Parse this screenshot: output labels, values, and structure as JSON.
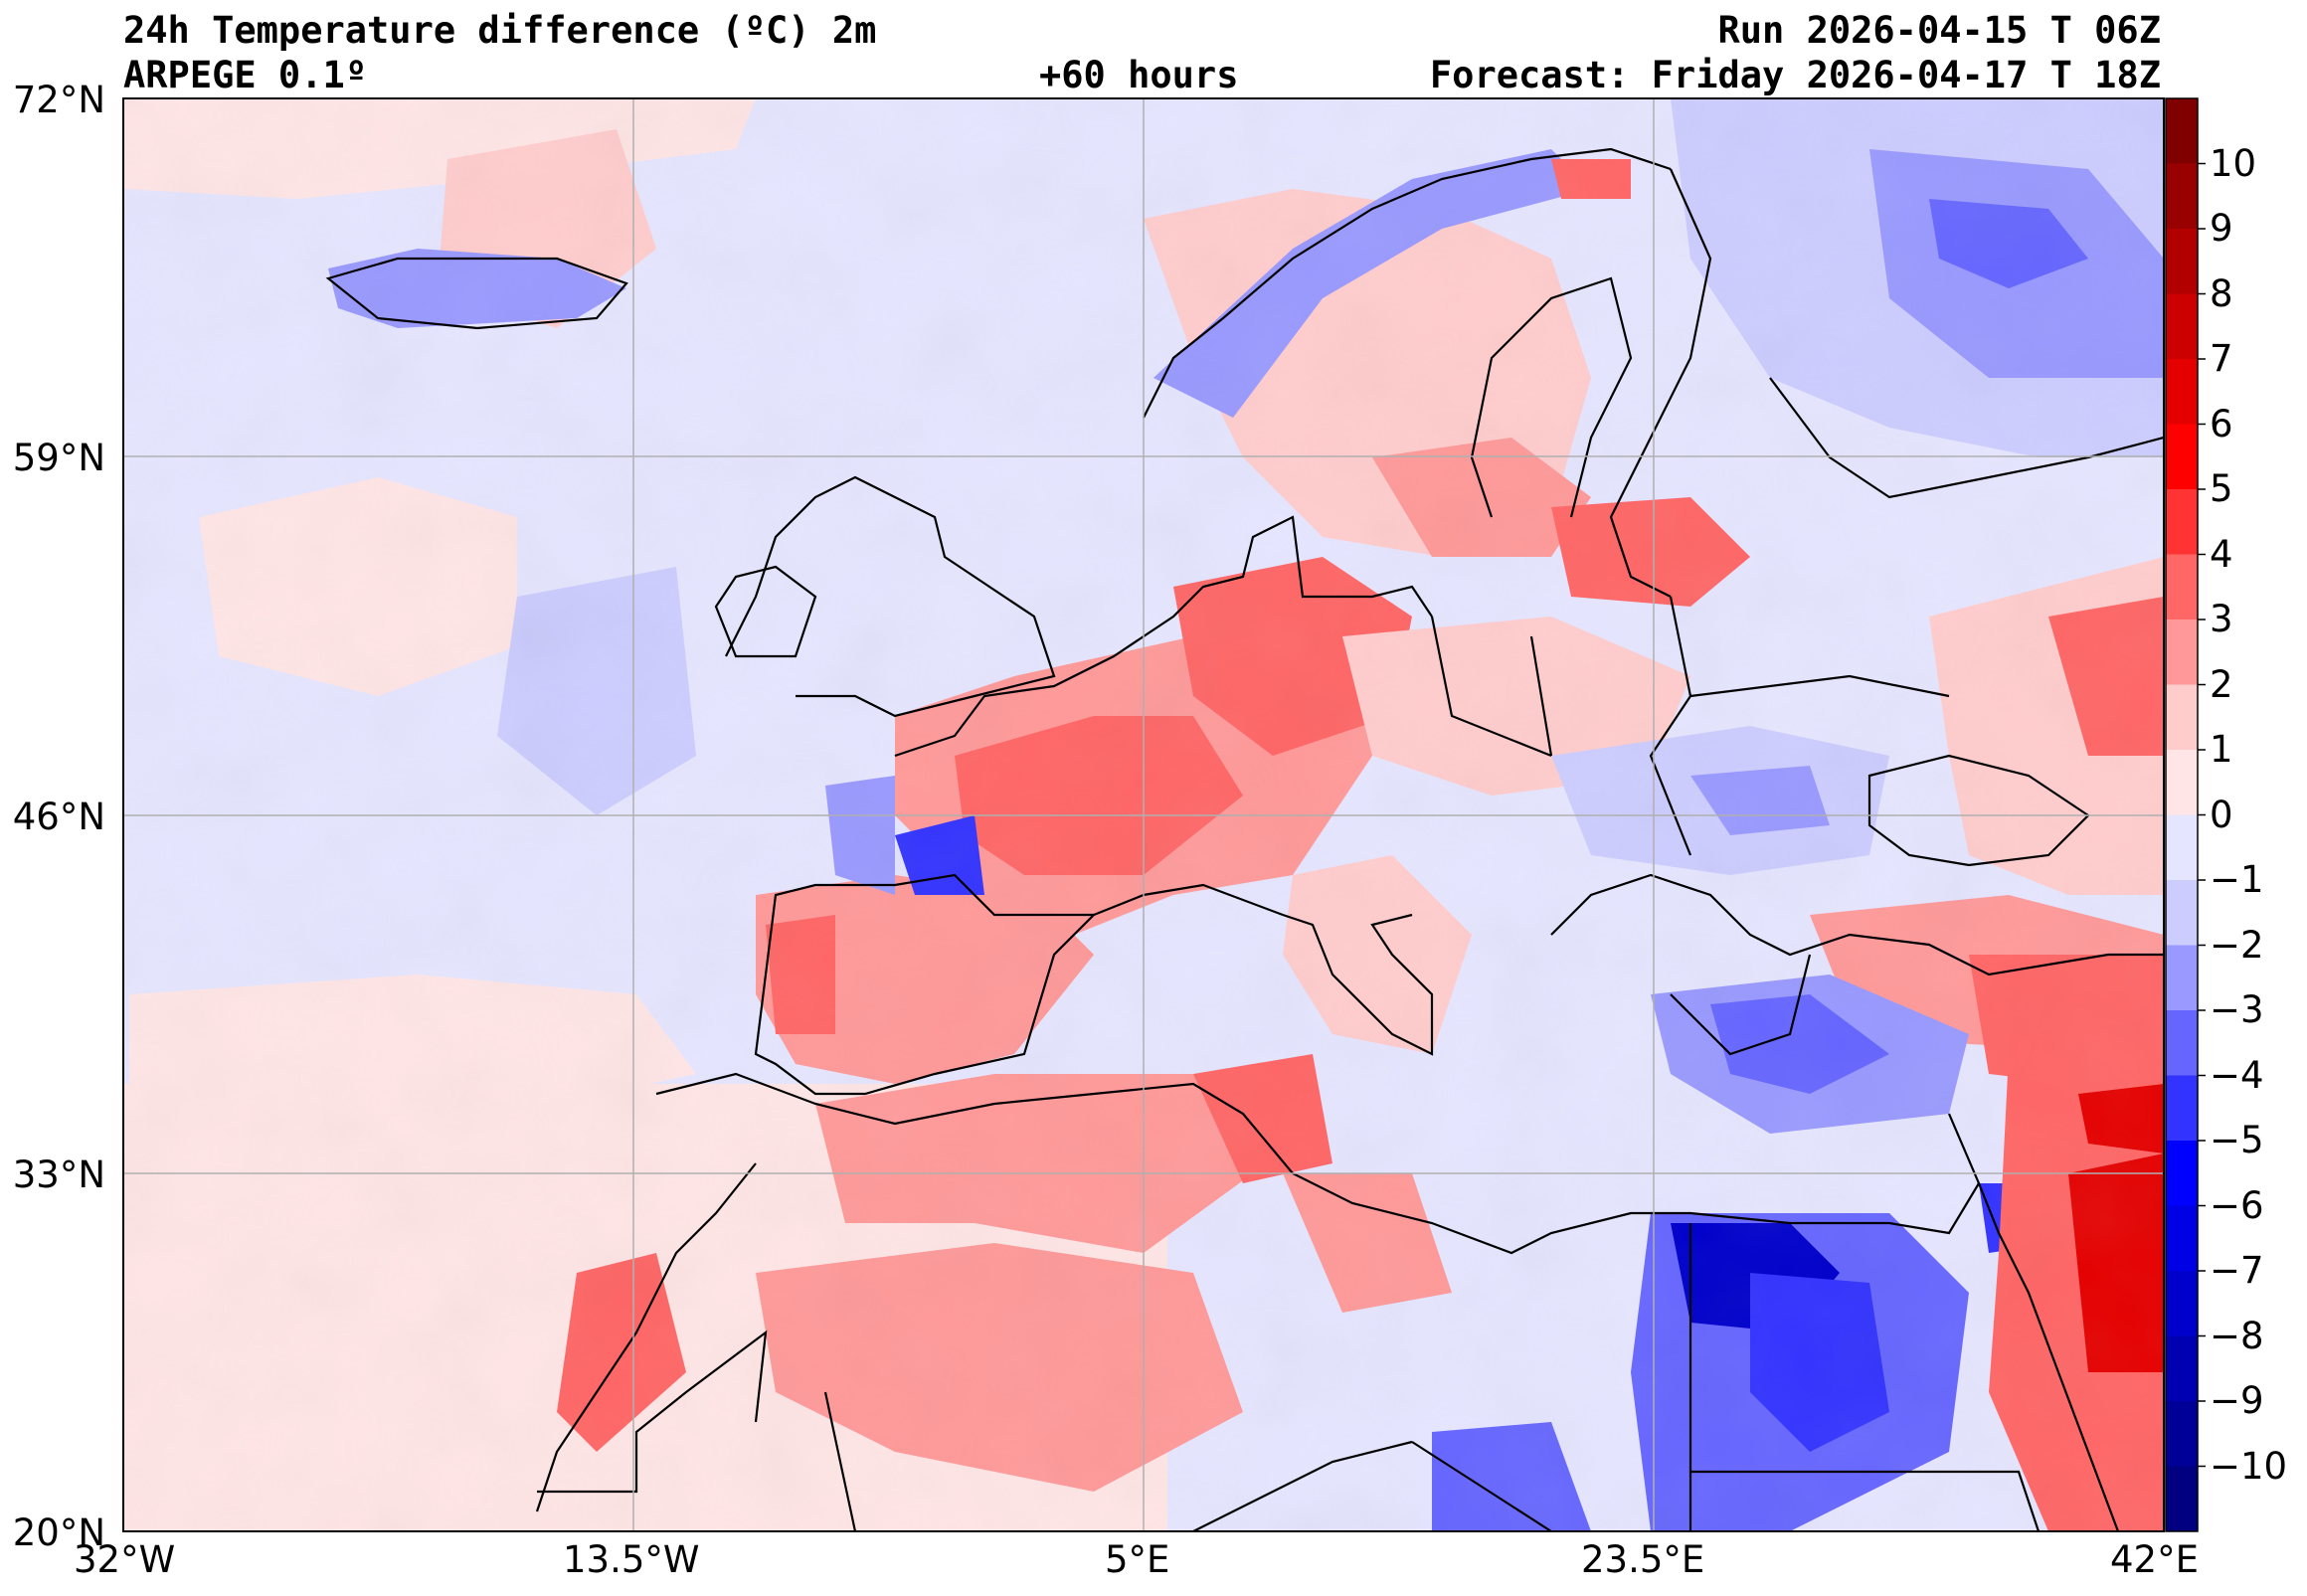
{
  "header": {
    "title": "24h Temperature difference (ºC) 2m",
    "model": "ARPEGE 0.1º",
    "lead_time": "+60 hours",
    "run": "Run 2026-04-15 T 06Z",
    "forecast": "Forecast: Friday 2026-04-17 T 18Z"
  },
  "map": {
    "lat_ticks": [
      "72°N",
      "59°N",
      "46°N",
      "33°N",
      "20°N"
    ],
    "lon_ticks": [
      "32°W",
      "13.5°W",
      "5°E",
      "23.5°E",
      "42°E"
    ],
    "lat_range": [
      20,
      72
    ],
    "lon_range": [
      -32,
      42
    ]
  },
  "colorbar": {
    "tick_labels": [
      "10",
      "9",
      "8",
      "7",
      "6",
      "5",
      "4",
      "3",
      "2",
      "1",
      "0",
      "−1",
      "−2",
      "−3",
      "−4",
      "−5",
      "−6",
      "−7",
      "−8",
      "−9",
      "−10"
    ],
    "levels": [
      11,
      10,
      9,
      8,
      7,
      6,
      5,
      4,
      3,
      2,
      1,
      0,
      -1,
      -2,
      -3,
      -4,
      -5,
      -6,
      -7,
      -8,
      -9,
      -10,
      -11
    ],
    "colors": [
      "#800000",
      "#990000",
      "#b20000",
      "#cc0000",
      "#e50000",
      "#ff0000",
      "#ff3333",
      "#ff6666",
      "#ff9999",
      "#ffcccc",
      "#ffe5e5",
      "#e5e5ff",
      "#ccccff",
      "#9999ff",
      "#6666ff",
      "#3333ff",
      "#0000ff",
      "#0000e5",
      "#0000cc",
      "#0000b2",
      "#000099",
      "#000080"
    ]
  }
}
